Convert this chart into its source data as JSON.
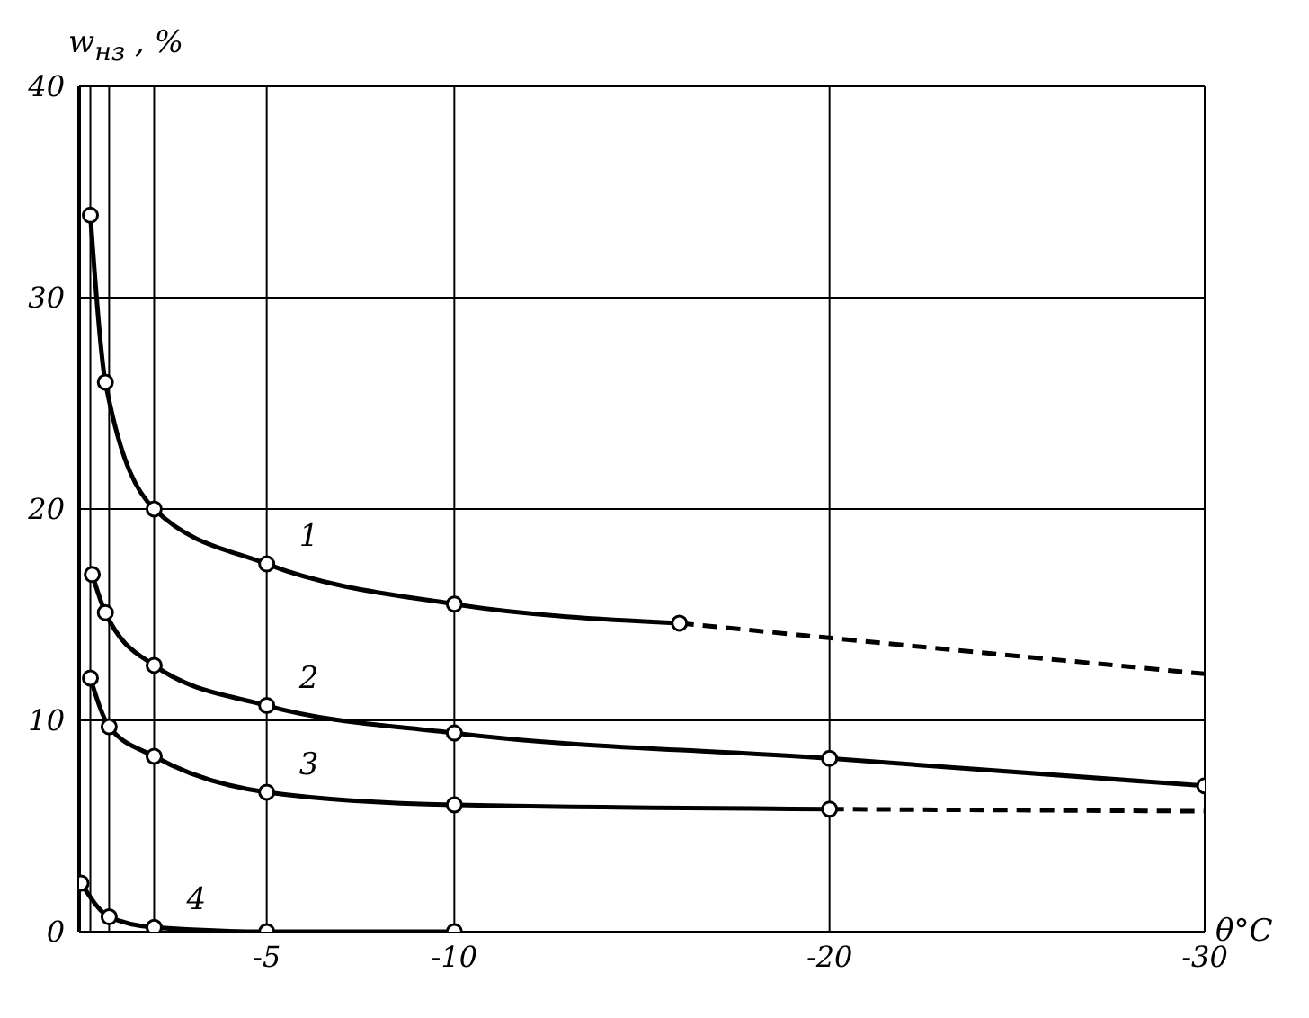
{
  "chart_data": {
    "type": "line",
    "ylabel": "w$_{нз}$ , %",
    "xlabel": "θ°C",
    "xlim": [
      0,
      -30
    ],
    "xticks": [
      {
        "value": -0.3,
        "label": null
      },
      {
        "value": -0.8,
        "label": null
      },
      {
        "value": -2,
        "label": null
      },
      -5,
      -10,
      -20,
      -30
    ],
    "ylim": [
      0,
      40
    ],
    "yticks": [
      0,
      10,
      20,
      30,
      40
    ],
    "grid": true,
    "marker": "circle",
    "line_style": "solid",
    "series": [
      {
        "name": "1",
        "color": "#000000",
        "x": [
          -0.3,
          -0.7,
          -2,
          -5,
          -10,
          -16
        ],
        "values": [
          33.9,
          26,
          20,
          17.4,
          15.5,
          14.6
        ]
      },
      {
        "color": "#000000",
        "x": [
          -16,
          -20,
          -30
        ],
        "values": [
          14.6,
          13.9,
          12.2
        ],
        "line_style": "dashed",
        "marker": "none"
      },
      {
        "name": "2",
        "color": "#000000",
        "x": [
          -0.35,
          -0.7,
          -2,
          -5,
          -10,
          -20,
          -30
        ],
        "values": [
          16.9,
          15.1,
          12.6,
          10.7,
          9.4,
          8.2,
          6.9
        ]
      },
      {
        "name": "3",
        "color": "#000000",
        "x": [
          -0.3,
          -0.8,
          -2,
          -5,
          -10,
          -20
        ],
        "values": [
          12,
          9.7,
          8.3,
          6.6,
          6,
          5.8
        ]
      },
      {
        "color": "#000000",
        "x": [
          -20,
          -30
        ],
        "values": [
          5.8,
          5.7
        ],
        "line_style": "dashed",
        "marker": "none"
      },
      {
        "name": "4",
        "color": "#000000",
        "x": [
          -0.05,
          -0.8,
          -2,
          -5,
          -10
        ],
        "values": [
          2.3,
          0.7,
          0.2,
          0,
          0
        ]
      }
    ]
  }
}
